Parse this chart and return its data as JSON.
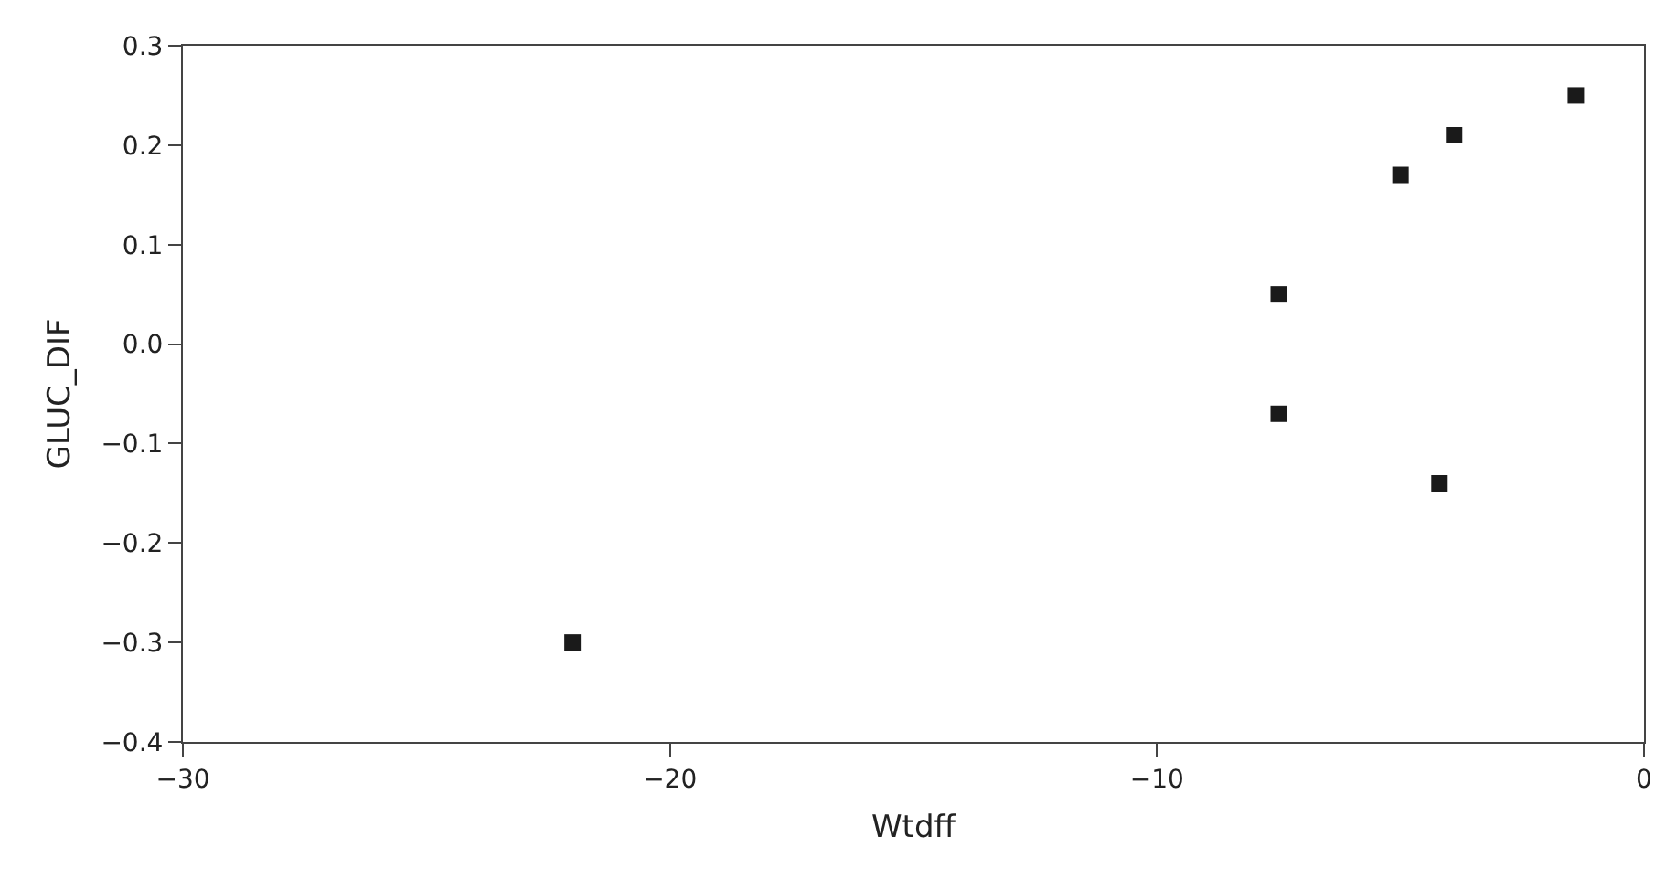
{
  "chart_data": {
    "type": "scatter",
    "xlabel": "Wtdff",
    "ylabel": "GLUC_DIF",
    "x": [
      -22.0,
      -7.5,
      -7.5,
      -5.0,
      -3.9,
      -1.4,
      -4.2
    ],
    "values": [
      -0.3,
      0.05,
      -0.07,
      0.17,
      0.21,
      0.25,
      -0.14
    ],
    "color": "#1a1a1a",
    "marker": "square",
    "legend": false,
    "xlim": [
      -30,
      0
    ],
    "xticks": [
      {
        "value": -30,
        "label": "−30"
      },
      {
        "value": -20,
        "label": "−20"
      },
      {
        "value": -10,
        "label": "−10"
      },
      0
    ],
    "ylim": [
      -0.4,
      0.3
    ],
    "yticks": [
      {
        "value": -0.4,
        "label": "−0.4"
      },
      {
        "value": -0.3,
        "label": "−0.3"
      },
      {
        "value": -0.2,
        "label": "−0.2"
      },
      {
        "value": -0.1,
        "label": "−0.1"
      },
      {
        "value": 0.0,
        "label": "0.0"
      },
      {
        "value": 0.1,
        "label": "0.1"
      },
      {
        "value": 0.2,
        "label": "0.2"
      },
      {
        "value": 0.3,
        "label": "0.3"
      }
    ]
  }
}
